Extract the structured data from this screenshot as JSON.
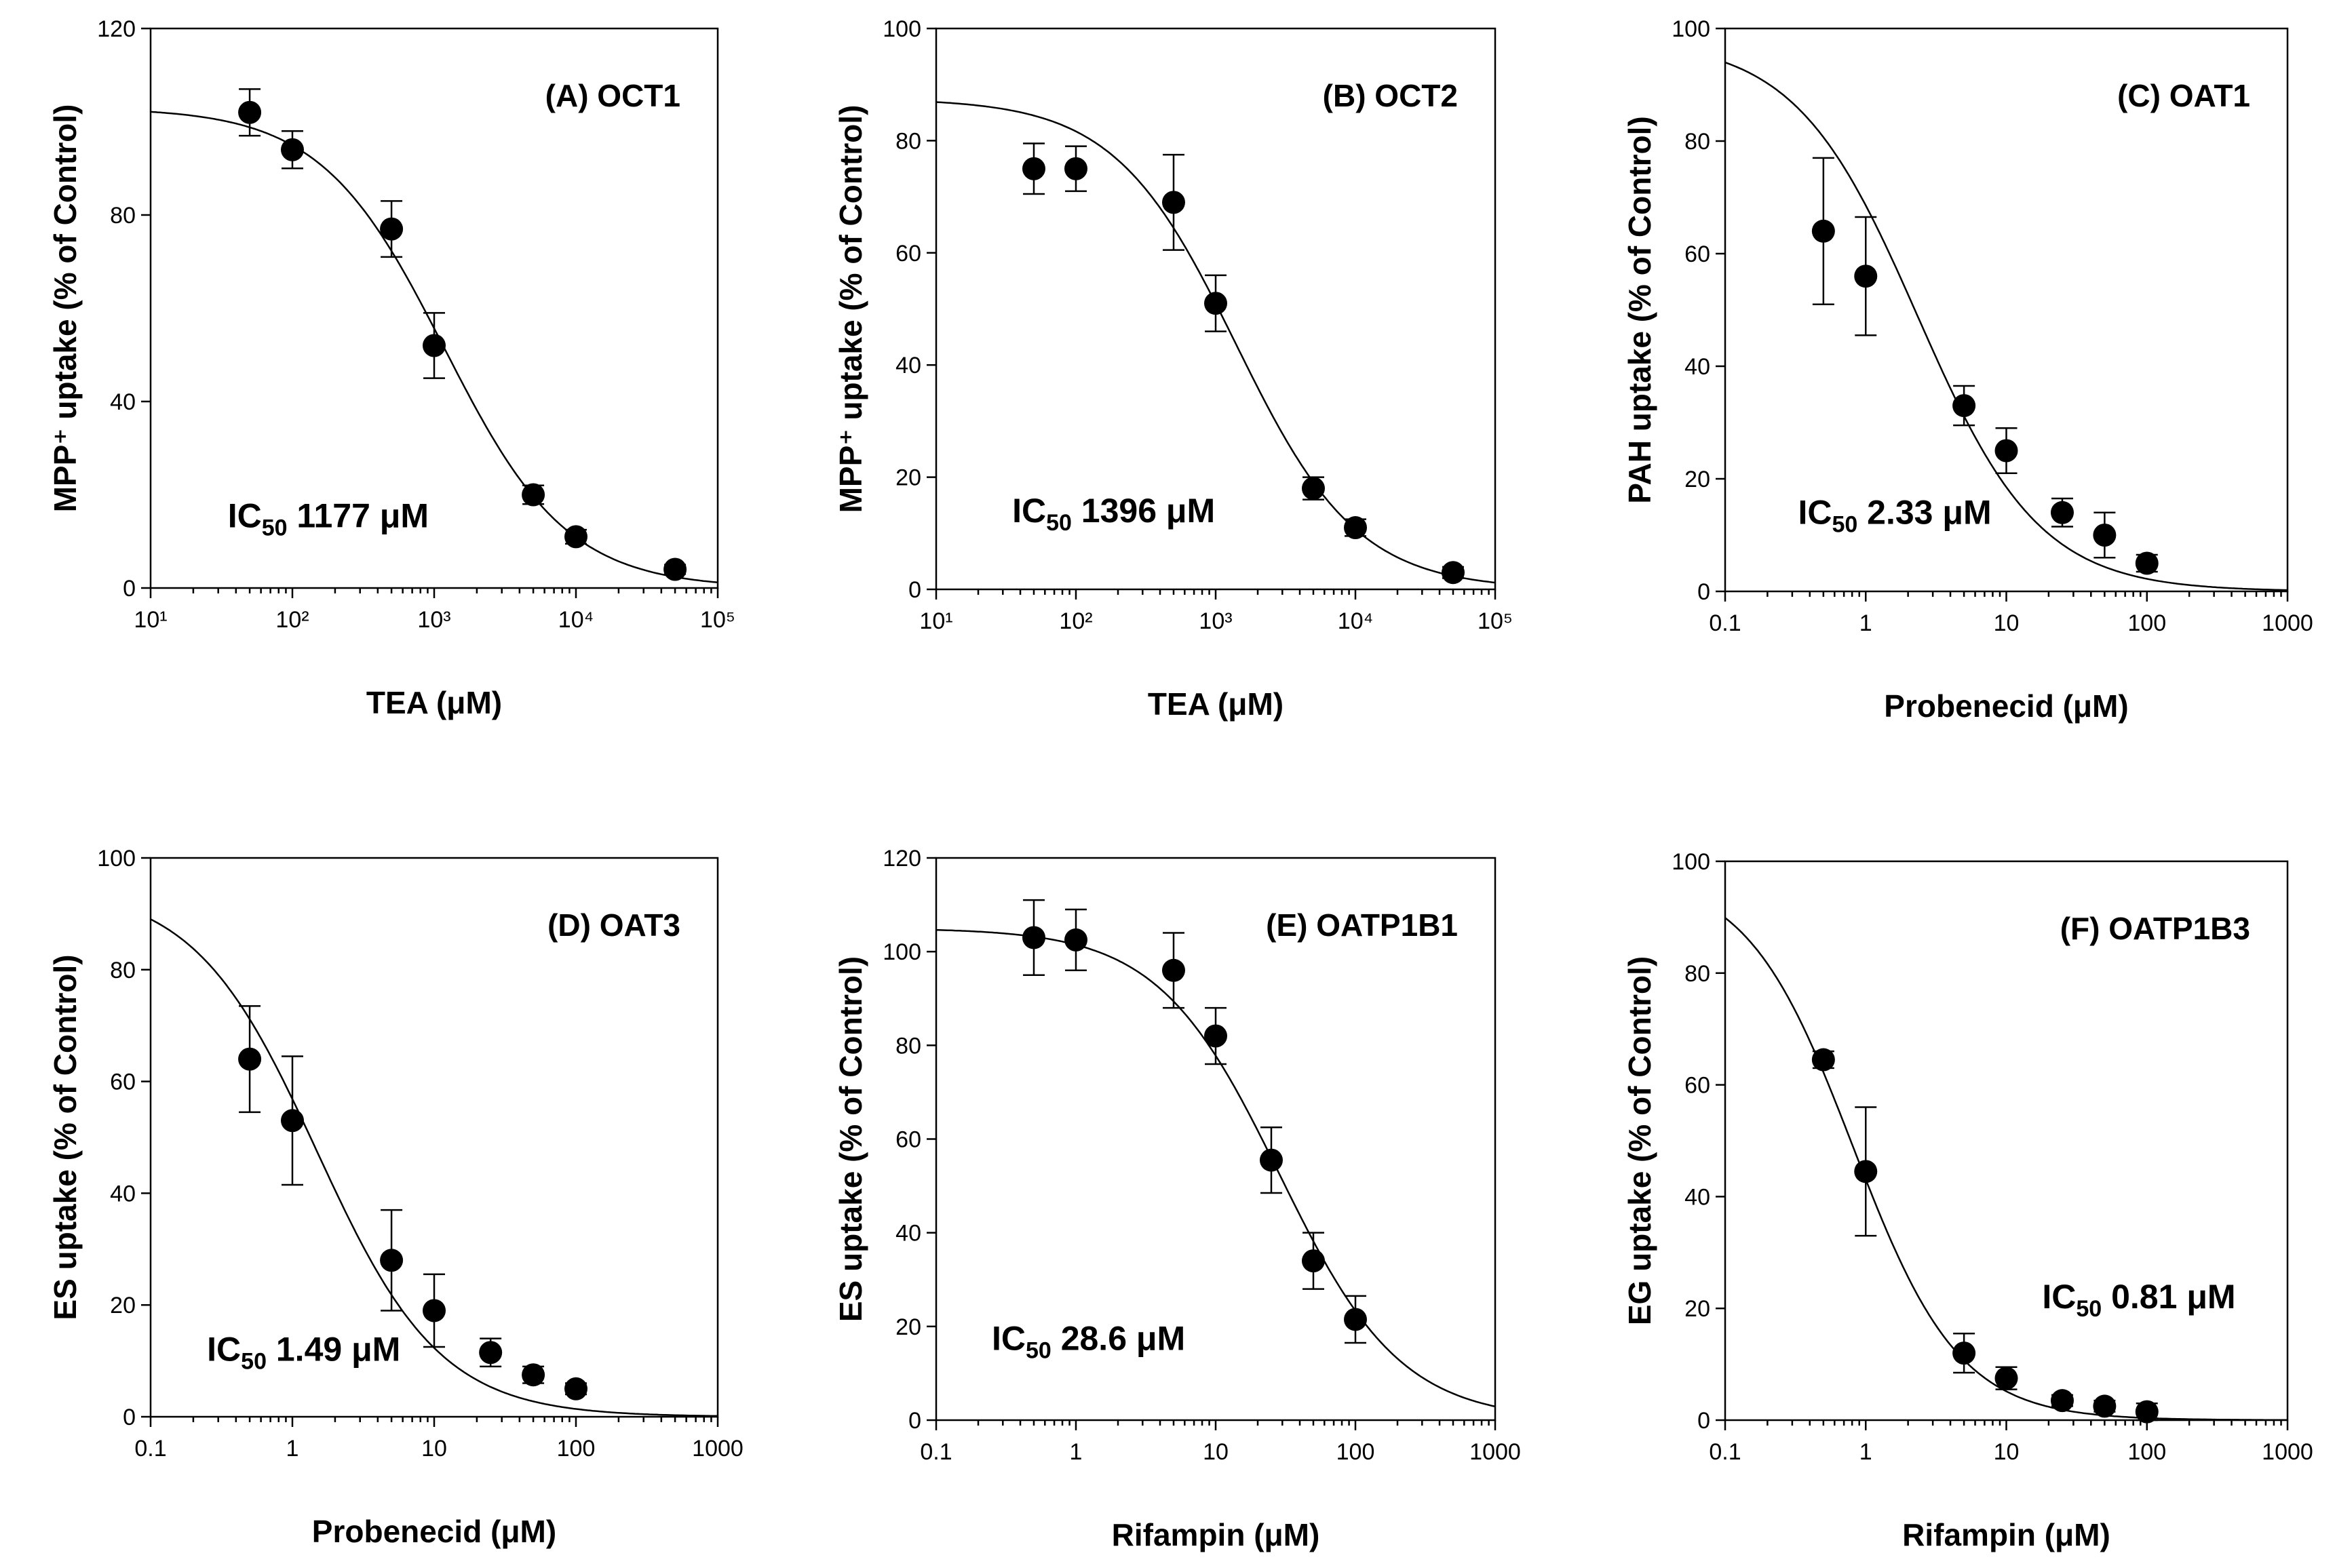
{
  "chart_data": [
    {
      "type": "scatter",
      "panel": "A",
      "title": "(A) OCT1",
      "xlabel": "TEA (μM)",
      "ylabel": "MPP⁺ uptake (% of Control)",
      "xscale": "log",
      "xlim": [
        10,
        100000
      ],
      "ylim": [
        0,
        120
      ],
      "xticks": [
        10,
        100,
        1000,
        10000,
        100000
      ],
      "xtick_labels": [
        "10¹",
        "10²",
        "10³",
        "10⁴",
        "10⁵"
      ],
      "yticks": [
        0,
        40,
        80,
        120
      ],
      "ytick_labels": [
        "0",
        "40",
        "80",
        "120"
      ],
      "x": [
        50,
        100,
        500,
        1000,
        5000,
        10000,
        50000
      ],
      "y": [
        102,
        94,
        77,
        52,
        20,
        11,
        4
      ],
      "err": [
        5,
        4,
        6,
        7,
        2,
        1.5,
        1
      ],
      "ic50_prefix": "IC",
      "ic50_sub": "50",
      "ic50_value": "1177 μM",
      "ic50": 1177,
      "fit": {
        "top": 103,
        "bottom": 0,
        "hill": 1
      },
      "ic50_label_anchor": [
        35,
        13
      ]
    },
    {
      "type": "scatter",
      "panel": "B",
      "title": "(B) OCT2",
      "xlabel": "TEA (μM)",
      "ylabel": "MPP⁺ uptake (% of Control)",
      "xscale": "log",
      "xlim": [
        10,
        100000
      ],
      "ylim": [
        0,
        100
      ],
      "xticks": [
        10,
        100,
        1000,
        10000,
        100000
      ],
      "xtick_labels": [
        "10¹",
        "10²",
        "10³",
        "10⁴",
        "10⁵"
      ],
      "yticks": [
        0,
        20,
        40,
        60,
        80,
        100
      ],
      "ytick_labels": [
        "0",
        "20",
        "40",
        "60",
        "80",
        "100"
      ],
      "x": [
        50,
        100,
        500,
        1000,
        5000,
        10000,
        50000
      ],
      "y": [
        75,
        75,
        69,
        51,
        18,
        11,
        3
      ],
      "err": [
        4.5,
        4,
        8.5,
        5,
        2,
        1.5,
        1
      ],
      "ic50_prefix": "IC",
      "ic50_sub": "50",
      "ic50_value": "1396 μM",
      "ic50": 1396,
      "fit": {
        "top": 87.5,
        "bottom": 0,
        "hill": 1
      },
      "ic50_label_anchor": [
        35,
        12
      ]
    },
    {
      "type": "scatter",
      "panel": "C",
      "title": "(C) OAT1",
      "xlabel": "Probenecid (μM)",
      "ylabel": "PAH uptake (% of Control)",
      "xscale": "log",
      "xlim": [
        0.1,
        1000
      ],
      "ylim": [
        0,
        100
      ],
      "xticks": [
        0.1,
        1,
        10,
        100,
        1000
      ],
      "xtick_labels": [
        "0.1",
        "1",
        "10",
        "100",
        "1000"
      ],
      "yticks": [
        0,
        20,
        40,
        60,
        80,
        100
      ],
      "ytick_labels": [
        "0",
        "20",
        "40",
        "60",
        "80",
        "100"
      ],
      "x": [
        0.5,
        1,
        5,
        10,
        25,
        50,
        100
      ],
      "y": [
        64,
        56,
        33,
        25,
        14,
        10,
        5
      ],
      "err": [
        13,
        10.5,
        3.5,
        4,
        2.5,
        4,
        1.5
      ],
      "ic50_prefix": "IC",
      "ic50_sub": "50",
      "ic50_value": "2.33 μM",
      "ic50": 2.33,
      "fit": {
        "top": 98,
        "bottom": 0,
        "hill": 1
      },
      "ic50_label_anchor": [
        0.33,
        12
      ]
    },
    {
      "type": "scatter",
      "panel": "D",
      "title": "(D) OAT3",
      "xlabel": "Probenecid (μM)",
      "ylabel": "ES uptake (% of Control)",
      "xscale": "log",
      "xlim": [
        0.1,
        1000
      ],
      "ylim": [
        0,
        100
      ],
      "xticks": [
        0.1,
        1,
        10,
        100,
        1000
      ],
      "xtick_labels": [
        "0.1",
        "1",
        "10",
        "100",
        "1000"
      ],
      "yticks": [
        0,
        20,
        40,
        60,
        80,
        100
      ],
      "ytick_labels": [
        "0",
        "20",
        "40",
        "60",
        "80",
        "100"
      ],
      "x": [
        0.5,
        1,
        5,
        10,
        25,
        50,
        100
      ],
      "y": [
        64,
        53,
        28,
        19,
        11.5,
        7.5,
        5
      ],
      "err": [
        9.5,
        11.5,
        9,
        6.5,
        2.5,
        1.5,
        1
      ],
      "ic50_prefix": "IC",
      "ic50_sub": "50",
      "ic50_value": "1.49 μM",
      "ic50": 1.49,
      "fit": {
        "top": 95,
        "bottom": 0,
        "hill": 1
      },
      "ic50_label_anchor": [
        0.25,
        10
      ]
    },
    {
      "type": "scatter",
      "panel": "E",
      "title": "(E) OATP1B1",
      "xlabel": "Rifampin (μM)",
      "ylabel": "ES uptake (% of Control)",
      "xscale": "log",
      "xlim": [
        0.1,
        1000
      ],
      "ylim": [
        0,
        120
      ],
      "xticks": [
        0.1,
        1,
        10,
        100,
        1000
      ],
      "xtick_labels": [
        "0.1",
        "1",
        "10",
        "100",
        "1000"
      ],
      "yticks": [
        0,
        20,
        40,
        60,
        80,
        100,
        120
      ],
      "ytick_labels": [
        "0",
        "20",
        "40",
        "60",
        "80",
        "100",
        "120"
      ],
      "x": [
        0.5,
        1,
        5,
        10,
        25,
        50,
        100
      ],
      "y": [
        103,
        102.5,
        96,
        82,
        55.5,
        34,
        21.5
      ],
      "err": [
        8,
        6.5,
        8,
        6,
        7,
        6,
        5
      ],
      "ic50_prefix": "IC",
      "ic50_sub": "50",
      "ic50_value": "28.6 μM",
      "ic50": 28.6,
      "fit": {
        "top": 105,
        "bottom": 0,
        "hill": 1
      },
      "ic50_label_anchor": [
        0.25,
        15
      ]
    },
    {
      "type": "scatter",
      "panel": "F",
      "title": "(F) OATP1B3",
      "xlabel": "Rifampin (μM)",
      "ylabel": "EG uptake (% of Control)",
      "xscale": "log",
      "xlim": [
        0.1,
        1000
      ],
      "ylim": [
        0,
        100
      ],
      "xticks": [
        0.1,
        1,
        10,
        100,
        1000
      ],
      "xtick_labels": [
        "0.1",
        "1",
        "10",
        "100",
        "1000"
      ],
      "yticks": [
        0,
        20,
        40,
        60,
        80,
        100
      ],
      "ytick_labels": [
        "0",
        "20",
        "40",
        "60",
        "80",
        "100"
      ],
      "x": [
        0.5,
        1,
        5,
        10,
        25,
        50,
        100
      ],
      "y": [
        64.5,
        44.5,
        12,
        7.5,
        3.5,
        2.5,
        1.5
      ],
      "err": [
        1.5,
        11.5,
        3.5,
        2,
        1,
        1,
        1.5
      ],
      "ic50_prefix": "IC",
      "ic50_sub": "50",
      "ic50_value": "0.81 μM",
      "ic50": 0.81,
      "fit": {
        "top": 98,
        "bottom": 0,
        "hill": 1.15
      },
      "ic50_label_anchor": [
        18,
        20
      ]
    }
  ]
}
